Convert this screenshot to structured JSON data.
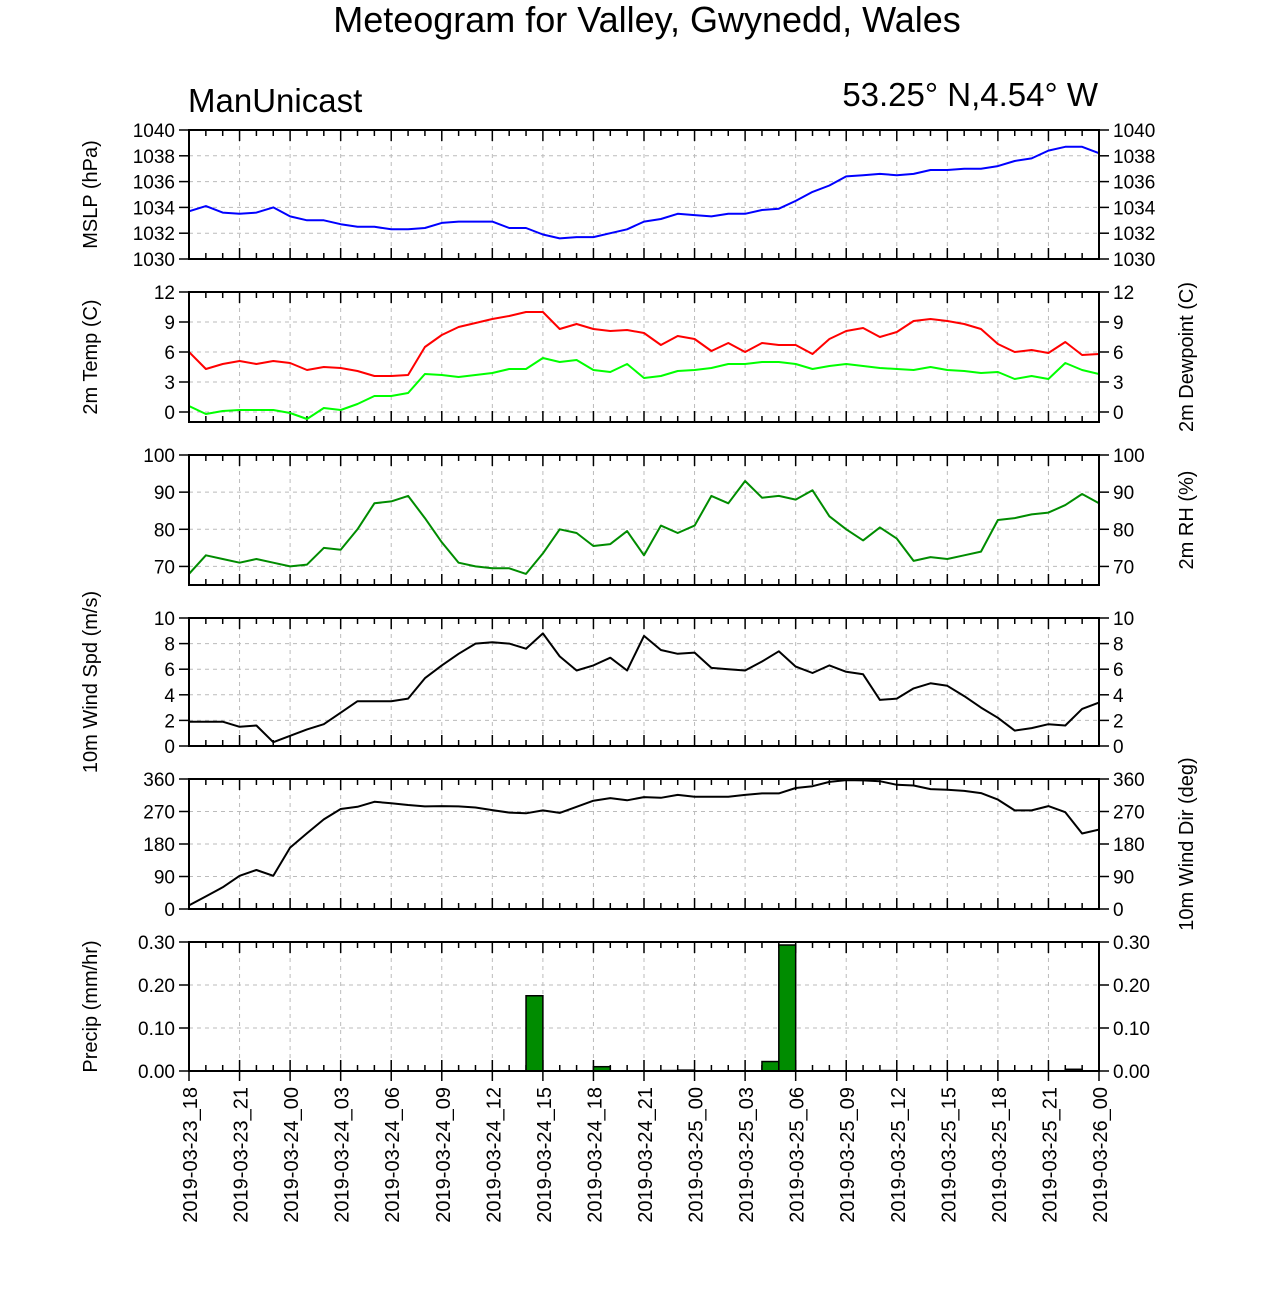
{
  "title": "Meteogram for Valley, Gwynedd, Wales",
  "model_label": "ManUnicast",
  "location_label": "53.25° N,4.54° W",
  "colors": {
    "mslp": "#0000ff",
    "temp": "#ff0000",
    "dewpoint": "#00ff00",
    "rh": "#008c00",
    "wind_spd": "#000000",
    "wind_dir": "#000000",
    "precip_fill": "#008c00",
    "grid": "#bbbbbb"
  },
  "x_tick_labels": [
    "2019-03-23_18",
    "2019-03-23_21",
    "2019-03-24_00",
    "2019-03-24_03",
    "2019-03-24_06",
    "2019-03-24_09",
    "2019-03-24_12",
    "2019-03-24_15",
    "2019-03-24_18",
    "2019-03-24_21",
    "2019-03-25_00",
    "2019-03-25_03",
    "2019-03-25_06",
    "2019-03-25_09",
    "2019-03-25_12",
    "2019-03-25_15",
    "2019-03-25_18",
    "2019-03-25_21",
    "2019-03-26_00"
  ],
  "chart_data": [
    {
      "type": "line",
      "panel": "mslp",
      "ylabel_left": "MSLP (hPa)",
      "ylabel_right": "",
      "ylim": [
        1030,
        1040
      ],
      "yticks": [
        1030,
        1032,
        1034,
        1036,
        1038,
        1040
      ],
      "x_hours": [
        0,
        1,
        2,
        3,
        4,
        5,
        6,
        7,
        8,
        9,
        10,
        11,
        12,
        13,
        14,
        15,
        16,
        17,
        18,
        19,
        20,
        21,
        22,
        23,
        24,
        25,
        26,
        27,
        28,
        29,
        30,
        31,
        32,
        33,
        34,
        35,
        36,
        37,
        38,
        39,
        40,
        41,
        42,
        43,
        44,
        45,
        46,
        47,
        48,
        49,
        50,
        51,
        52,
        53,
        54
      ],
      "series": [
        {
          "color_key": "mslp",
          "values": [
            1033.7,
            1034.1,
            1033.6,
            1033.5,
            1033.6,
            1034.0,
            1033.3,
            1033.0,
            1033.0,
            1032.7,
            1032.5,
            1032.5,
            1032.3,
            1032.3,
            1032.4,
            1032.8,
            1032.9,
            1032.9,
            1032.9,
            1032.4,
            1032.4,
            1031.9,
            1031.6,
            1031.7,
            1031.7,
            1032.0,
            1032.3,
            1032.9,
            1033.1,
            1033.5,
            1033.4,
            1033.3,
            1033.5,
            1033.5,
            1033.8,
            1033.9,
            1034.5,
            1035.2,
            1035.7,
            1036.4,
            1036.5,
            1036.6,
            1036.5,
            1036.6,
            1036.9,
            1036.9,
            1037.0,
            1037.0,
            1037.2,
            1037.6,
            1037.8,
            1038.4,
            1038.7,
            1038.7,
            1038.2
          ]
        }
      ]
    },
    {
      "type": "line",
      "panel": "temp",
      "ylabel_left": "2m Temp (C)",
      "ylabel_right": "2m Dewpoint (C)",
      "ylim": [
        -1,
        12
      ],
      "yticks": [
        0,
        3,
        6,
        9,
        12
      ],
      "x_hours": [
        0,
        1,
        2,
        3,
        4,
        5,
        6,
        7,
        8,
        9,
        10,
        11,
        12,
        13,
        14,
        15,
        16,
        17,
        18,
        19,
        20,
        21,
        22,
        23,
        24,
        25,
        26,
        27,
        28,
        29,
        30,
        31,
        32,
        33,
        34,
        35,
        36,
        37,
        38,
        39,
        40,
        41,
        42,
        43,
        44,
        45,
        46,
        47,
        48,
        49,
        50,
        51,
        52,
        53,
        54
      ],
      "series": [
        {
          "color_key": "temp",
          "values": [
            6.0,
            4.3,
            4.8,
            5.1,
            4.8,
            5.1,
            4.9,
            4.2,
            4.5,
            4.4,
            4.1,
            3.6,
            3.6,
            3.7,
            6.5,
            7.7,
            8.5,
            8.9,
            9.3,
            9.6,
            10.0,
            10.0,
            8.3,
            8.8,
            8.3,
            8.1,
            8.2,
            7.9,
            6.7,
            7.6,
            7.3,
            6.1,
            6.9,
            6.0,
            6.9,
            6.7,
            6.7,
            5.8,
            7.3,
            8.1,
            8.4,
            7.5,
            8.0,
            9.1,
            9.3,
            9.1,
            8.8,
            8.3,
            6.8,
            6.0,
            6.2,
            5.9,
            7.0,
            5.7,
            5.8
          ]
        },
        {
          "color_key": "dewpoint",
          "values": [
            0.6,
            -0.2,
            0.1,
            0.2,
            0.2,
            0.2,
            -0.1,
            -0.7,
            0.4,
            0.2,
            0.8,
            1.6,
            1.6,
            1.9,
            3.8,
            3.7,
            3.5,
            3.7,
            3.9,
            4.3,
            4.3,
            5.4,
            5.0,
            5.2,
            4.2,
            4.0,
            4.8,
            3.4,
            3.6,
            4.1,
            4.2,
            4.4,
            4.8,
            4.8,
            5.0,
            5.0,
            4.8,
            4.3,
            4.6,
            4.8,
            4.6,
            4.4,
            4.3,
            4.2,
            4.5,
            4.2,
            4.1,
            3.9,
            4.0,
            3.3,
            3.6,
            3.3,
            4.9,
            4.2,
            3.8
          ]
        }
      ]
    },
    {
      "type": "line",
      "panel": "rh",
      "ylabel_left": "",
      "ylabel_right": "2m RH (%)",
      "ylim": [
        65,
        100
      ],
      "yticks": [
        70,
        80,
        90,
        100
      ],
      "x_hours": [
        0,
        1,
        2,
        3,
        4,
        5,
        6,
        7,
        8,
        9,
        10,
        11,
        12,
        13,
        14,
        15,
        16,
        17,
        18,
        19,
        20,
        21,
        22,
        23,
        24,
        25,
        26,
        27,
        28,
        29,
        30,
        31,
        32,
        33,
        34,
        35,
        36,
        37,
        38,
        39,
        40,
        41,
        42,
        43,
        44,
        45,
        46,
        47,
        48,
        49,
        50,
        51,
        52,
        53,
        54
      ],
      "series": [
        {
          "color_key": "rh",
          "values": [
            68,
            73,
            72,
            71,
            72,
            71,
            70,
            70.5,
            75,
            74.5,
            80,
            87,
            87.5,
            89,
            83,
            76.5,
            71,
            70,
            69.5,
            69.5,
            68,
            73.5,
            80,
            79,
            75.5,
            76,
            79.5,
            73,
            81,
            79,
            81,
            89,
            87,
            93,
            88.5,
            89,
            88,
            90.5,
            83.5,
            80,
            77,
            80.5,
            77.5,
            71.5,
            72.5,
            72,
            73,
            74,
            82.5,
            83,
            84,
            84.5,
            86.5,
            89.5,
            87
          ]
        }
      ]
    },
    {
      "type": "line",
      "panel": "wind_spd",
      "ylabel_left": "10m Wind Spd (m/s)",
      "ylabel_right": "",
      "ylim": [
        0,
        10
      ],
      "yticks": [
        0,
        2,
        4,
        6,
        8,
        10
      ],
      "x_hours": [
        0,
        1,
        2,
        3,
        4,
        5,
        6,
        7,
        8,
        9,
        10,
        11,
        12,
        13,
        14,
        15,
        16,
        17,
        18,
        19,
        20,
        21,
        22,
        23,
        24,
        25,
        26,
        27,
        28,
        29,
        30,
        31,
        32,
        33,
        34,
        35,
        36,
        37,
        38,
        39,
        40,
        41,
        42,
        43,
        44,
        45,
        46,
        47,
        48,
        49,
        50,
        51,
        52,
        53,
        54
      ],
      "series": [
        {
          "color_key": "wind_spd",
          "values": [
            1.9,
            1.9,
            1.9,
            1.5,
            1.6,
            0.3,
            0.8,
            1.3,
            1.7,
            2.6,
            3.5,
            3.5,
            3.5,
            3.7,
            5.3,
            6.3,
            7.2,
            8.0,
            8.1,
            8.0,
            7.6,
            8.8,
            7.0,
            5.9,
            6.3,
            6.9,
            5.9,
            8.6,
            7.5,
            7.2,
            7.3,
            6.1,
            6.0,
            5.9,
            6.6,
            7.4,
            6.2,
            5.7,
            6.3,
            5.8,
            5.6,
            3.6,
            3.7,
            4.5,
            4.9,
            4.7,
            3.9,
            3.0,
            2.2,
            1.2,
            1.4,
            1.7,
            1.6,
            2.9,
            3.4
          ]
        }
      ]
    },
    {
      "type": "line",
      "panel": "wind_dir",
      "ylabel_left": "",
      "ylabel_right": "10m Wind Dir (deg)",
      "ylim": [
        0,
        360
      ],
      "yticks": [
        0,
        90,
        180,
        270,
        360
      ],
      "x_hours": [
        0,
        1,
        2,
        3,
        4,
        5,
        6,
        7,
        8,
        9,
        10,
        11,
        12,
        13,
        14,
        15,
        16,
        17,
        18,
        19,
        20,
        21,
        22,
        23,
        24,
        25,
        26,
        27,
        28,
        29,
        30,
        31,
        32,
        33,
        34,
        35,
        36,
        37,
        38,
        39,
        40,
        41,
        42,
        43,
        44,
        45,
        46,
        47,
        48,
        49,
        50,
        51,
        52,
        53,
        54
      ],
      "series": [
        {
          "color_key": "wind_dir",
          "values": [
            10,
            35,
            60,
            92,
            108,
            92,
            170,
            210,
            248,
            277,
            283,
            297,
            293,
            288,
            284,
            285,
            284,
            281,
            274,
            267,
            265,
            273,
            266,
            283,
            300,
            307,
            301,
            310,
            308,
            316,
            311,
            311,
            311,
            316,
            320,
            320,
            335,
            340,
            352,
            357,
            356,
            354,
            344,
            342,
            332,
            330,
            327,
            321,
            303,
            273,
            273,
            285,
            268,
            209,
            220
          ]
        }
      ]
    },
    {
      "type": "bar",
      "panel": "precip",
      "ylabel_left": "Precip (mm/hr)",
      "ylabel_right": "",
      "ylim": [
        0,
        0.3
      ],
      "yticks": [
        0.0,
        0.1,
        0.2,
        0.3
      ],
      "ytick_labels": [
        "0.00",
        "0.10",
        "0.20",
        "0.30"
      ],
      "x_hours": [
        20,
        24,
        28,
        29,
        34,
        35,
        41,
        52
      ],
      "series": [
        {
          "color_key": "precip_fill",
          "values": [
            0.175,
            0.01,
            0.001,
            0.002,
            0.022,
            0.293,
            0.001,
            0.004
          ]
        }
      ]
    }
  ]
}
